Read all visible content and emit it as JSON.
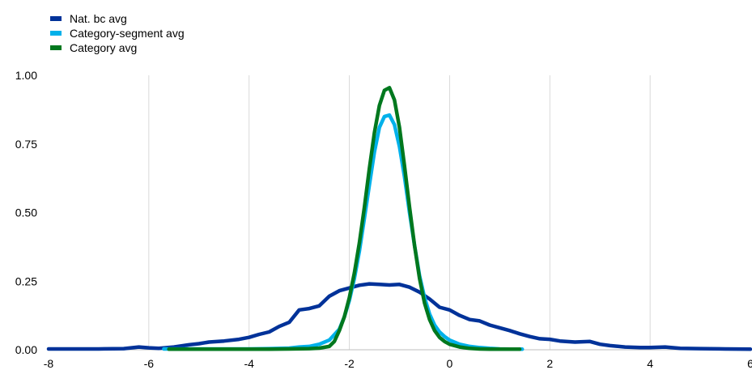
{
  "chart_data": {
    "type": "line",
    "title": "",
    "xlabel": "",
    "ylabel": "",
    "xlim": [
      -8,
      6
    ],
    "ylim": [
      0,
      1
    ],
    "x_ticks": [
      "-8",
      "-6",
      "-4",
      "-2",
      "0",
      "2",
      "4",
      "6"
    ],
    "y_ticks": [
      "0.00",
      "0.25",
      "0.50",
      "0.75",
      "1.00"
    ],
    "grid": "vertical",
    "legend_position": "top-left",
    "series": [
      {
        "name": "Nat. bc avg",
        "color": "#003299",
        "x": [
          -8,
          -7.5,
          -7,
          -6.5,
          -6.2,
          -6,
          -5.8,
          -5.5,
          -5.2,
          -5,
          -4.8,
          -4.5,
          -4.2,
          -4,
          -3.8,
          -3.6,
          -3.4,
          -3.2,
          -3,
          -2.8,
          -2.6,
          -2.4,
          -2.2,
          -2,
          -1.8,
          -1.6,
          -1.4,
          -1.2,
          -1,
          -0.8,
          -0.6,
          -0.4,
          -0.2,
          0,
          0.2,
          0.4,
          0.6,
          0.8,
          1,
          1.2,
          1.4,
          1.6,
          1.8,
          2,
          2.2,
          2.5,
          2.8,
          3,
          3.2,
          3.5,
          3.8,
          4,
          4.3,
          4.6,
          5,
          5.5,
          6
        ],
        "values": [
          0.003,
          0.003,
          0.003,
          0.004,
          0.01,
          0.007,
          0.005,
          0.01,
          0.018,
          0.022,
          0.028,
          0.032,
          0.038,
          0.045,
          0.056,
          0.065,
          0.085,
          0.1,
          0.145,
          0.15,
          0.16,
          0.195,
          0.215,
          0.225,
          0.235,
          0.24,
          0.238,
          0.236,
          0.238,
          0.228,
          0.21,
          0.185,
          0.155,
          0.145,
          0.125,
          0.11,
          0.105,
          0.09,
          0.08,
          0.07,
          0.058,
          0.048,
          0.04,
          0.038,
          0.032,
          0.028,
          0.03,
          0.02,
          0.015,
          0.01,
          0.008,
          0.008,
          0.01,
          0.005,
          0.004,
          0.003,
          0.002
        ]
      },
      {
        "name": "Category-segment avg",
        "color": "#00B1EA",
        "x": [
          -5.7,
          -5.2,
          -4.8,
          -4.4,
          -4,
          -3.6,
          -3.2,
          -3,
          -2.8,
          -2.6,
          -2.4,
          -2.2,
          -2.1,
          -2,
          -1.9,
          -1.8,
          -1.7,
          -1.6,
          -1.5,
          -1.4,
          -1.3,
          -1.2,
          -1.1,
          -1,
          -0.9,
          -0.8,
          -0.7,
          -0.6,
          -0.5,
          -0.4,
          -0.3,
          -0.2,
          -0.1,
          0,
          0.2,
          0.4,
          0.6,
          0.8,
          1,
          1.2,
          1.45
        ],
        "values": [
          0.003,
          0.003,
          0.003,
          0.003,
          0.003,
          0.004,
          0.006,
          0.01,
          0.012,
          0.02,
          0.035,
          0.075,
          0.12,
          0.18,
          0.26,
          0.36,
          0.48,
          0.6,
          0.72,
          0.81,
          0.85,
          0.855,
          0.82,
          0.74,
          0.63,
          0.5,
          0.38,
          0.27,
          0.19,
          0.13,
          0.09,
          0.065,
          0.048,
          0.035,
          0.02,
          0.012,
          0.008,
          0.005,
          0.003,
          0.002,
          0.002
        ]
      },
      {
        "name": "Category avg",
        "color": "#00781E",
        "x": [
          -5.6,
          -5.2,
          -4.8,
          -4.4,
          -4,
          -3.6,
          -3.2,
          -2.8,
          -2.6,
          -2.4,
          -2.3,
          -2.2,
          -2.1,
          -2,
          -1.9,
          -1.8,
          -1.7,
          -1.6,
          -1.5,
          -1.4,
          -1.3,
          -1.2,
          -1.1,
          -1,
          -0.9,
          -0.8,
          -0.7,
          -0.6,
          -0.5,
          -0.4,
          -0.3,
          -0.2,
          -0.1,
          0,
          0.2,
          0.4,
          0.6,
          0.8,
          1,
          1.2,
          1.4
        ],
        "values": [
          0.002,
          0.002,
          0.002,
          0.002,
          0.002,
          0.002,
          0.003,
          0.004,
          0.006,
          0.012,
          0.03,
          0.07,
          0.12,
          0.19,
          0.28,
          0.39,
          0.52,
          0.66,
          0.79,
          0.89,
          0.945,
          0.955,
          0.91,
          0.81,
          0.67,
          0.52,
          0.38,
          0.26,
          0.17,
          0.11,
          0.07,
          0.045,
          0.03,
          0.02,
          0.01,
          0.005,
          0.003,
          0.002,
          0.002,
          0.002,
          0.002
        ]
      }
    ]
  }
}
